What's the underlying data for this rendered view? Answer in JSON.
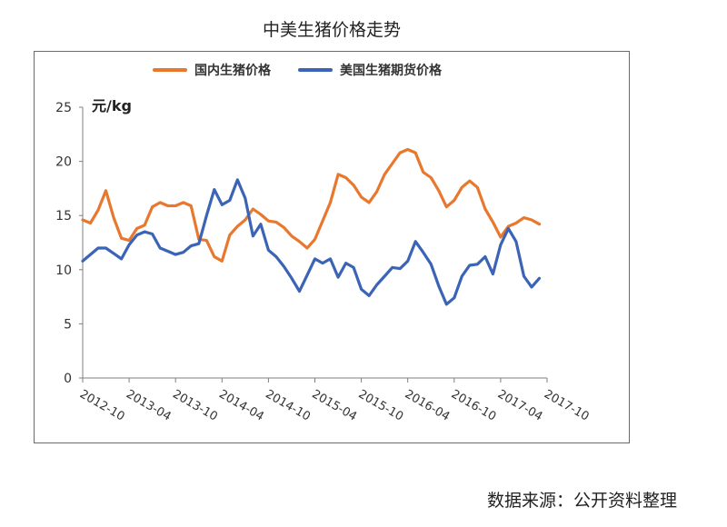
{
  "page_title": "中美生猪价格走势",
  "source_note": "数据来源：公开资料整理",
  "chart_data": {
    "type": "line",
    "title": "",
    "ylabel": "元/kg",
    "xlabel": "",
    "ylim": [
      0,
      25
    ],
    "yticks": [
      0,
      5,
      10,
      15,
      20,
      25
    ],
    "xlim": [
      "2012-10",
      "2017-10"
    ],
    "x_tick_labels": [
      "2012-10",
      "2013-04",
      "2013-10",
      "2014-04",
      "2014-10",
      "2015-04",
      "2015-10",
      "2016-04",
      "2016-10",
      "2017-04",
      "2017-10"
    ],
    "grid": false,
    "legend_position": "top",
    "series": [
      {
        "name": "国内生猪价格",
        "color": "#E8782E",
        "points": [
          [
            "2012-10",
            14.6
          ],
          [
            "2012-11",
            14.3
          ],
          [
            "2012-12",
            15.5
          ],
          [
            "2013-01",
            17.3
          ],
          [
            "2013-02",
            14.8
          ],
          [
            "2013-03",
            12.9
          ],
          [
            "2013-04",
            12.7
          ],
          [
            "2013-05",
            13.8
          ],
          [
            "2013-06",
            14.1
          ],
          [
            "2013-07",
            15.8
          ],
          [
            "2013-08",
            16.2
          ],
          [
            "2013-09",
            15.9
          ],
          [
            "2013-10",
            15.9
          ],
          [
            "2013-11",
            16.2
          ],
          [
            "2013-12",
            15.9
          ],
          [
            "2014-01",
            12.8
          ],
          [
            "2014-02",
            12.7
          ],
          [
            "2014-03",
            11.2
          ],
          [
            "2014-04",
            10.8
          ],
          [
            "2014-05",
            13.2
          ],
          [
            "2014-06",
            14.0
          ],
          [
            "2014-07",
            14.6
          ],
          [
            "2014-08",
            15.6
          ],
          [
            "2014-09",
            15.1
          ],
          [
            "2014-10",
            14.5
          ],
          [
            "2014-11",
            14.4
          ],
          [
            "2014-12",
            13.9
          ],
          [
            "2015-01",
            13.1
          ],
          [
            "2015-02",
            12.6
          ],
          [
            "2015-03",
            12.0
          ],
          [
            "2015-04",
            12.8
          ],
          [
            "2015-05",
            14.5
          ],
          [
            "2015-06",
            16.2
          ],
          [
            "2015-07",
            18.8
          ],
          [
            "2015-08",
            18.5
          ],
          [
            "2015-09",
            17.8
          ],
          [
            "2015-10",
            16.7
          ],
          [
            "2015-11",
            16.2
          ],
          [
            "2015-12",
            17.2
          ],
          [
            "2016-01",
            18.8
          ],
          [
            "2016-02",
            19.8
          ],
          [
            "2016-03",
            20.8
          ],
          [
            "2016-04",
            21.1
          ],
          [
            "2016-05",
            20.8
          ],
          [
            "2016-06",
            19.0
          ],
          [
            "2016-07",
            18.5
          ],
          [
            "2016-08",
            17.3
          ],
          [
            "2016-09",
            15.8
          ],
          [
            "2016-10",
            16.4
          ],
          [
            "2016-11",
            17.6
          ],
          [
            "2016-12",
            18.2
          ],
          [
            "2017-01",
            17.6
          ],
          [
            "2017-02",
            15.6
          ],
          [
            "2017-03",
            14.4
          ],
          [
            "2017-04",
            13.0
          ],
          [
            "2017-05",
            14.0
          ],
          [
            "2017-06",
            14.3
          ],
          [
            "2017-07",
            14.8
          ],
          [
            "2017-08",
            14.6
          ],
          [
            "2017-09",
            14.2
          ]
        ]
      },
      {
        "name": "美国生猪期货价格",
        "color": "#3B64B6",
        "points": [
          [
            "2012-10",
            10.8
          ],
          [
            "2012-11",
            11.4
          ],
          [
            "2012-12",
            12.0
          ],
          [
            "2013-01",
            12.0
          ],
          [
            "2013-02",
            11.5
          ],
          [
            "2013-03",
            11.0
          ],
          [
            "2013-04",
            12.3
          ],
          [
            "2013-05",
            13.2
          ],
          [
            "2013-06",
            13.5
          ],
          [
            "2013-07",
            13.3
          ],
          [
            "2013-08",
            12.0
          ],
          [
            "2013-09",
            11.7
          ],
          [
            "2013-10",
            11.4
          ],
          [
            "2013-11",
            11.6
          ],
          [
            "2013-12",
            12.2
          ],
          [
            "2014-01",
            12.4
          ],
          [
            "2014-02",
            15.0
          ],
          [
            "2014-03",
            17.4
          ],
          [
            "2014-04",
            16.0
          ],
          [
            "2014-05",
            16.4
          ],
          [
            "2014-06",
            18.3
          ],
          [
            "2014-07",
            16.6
          ],
          [
            "2014-08",
            13.1
          ],
          [
            "2014-09",
            14.2
          ],
          [
            "2014-10",
            11.8
          ],
          [
            "2014-11",
            11.2
          ],
          [
            "2014-12",
            10.3
          ],
          [
            "2015-01",
            9.2
          ],
          [
            "2015-02",
            8.0
          ],
          [
            "2015-03",
            9.5
          ],
          [
            "2015-04",
            11.0
          ],
          [
            "2015-05",
            10.6
          ],
          [
            "2015-06",
            11.0
          ],
          [
            "2015-07",
            9.3
          ],
          [
            "2015-08",
            10.6
          ],
          [
            "2015-09",
            10.2
          ],
          [
            "2015-10",
            8.2
          ],
          [
            "2015-11",
            7.6
          ],
          [
            "2015-12",
            8.6
          ],
          [
            "2016-01",
            9.4
          ],
          [
            "2016-02",
            10.2
          ],
          [
            "2016-03",
            10.1
          ],
          [
            "2016-04",
            10.8
          ],
          [
            "2016-05",
            12.6
          ],
          [
            "2016-06",
            11.6
          ],
          [
            "2016-07",
            10.5
          ],
          [
            "2016-08",
            8.5
          ],
          [
            "2016-09",
            6.8
          ],
          [
            "2016-10",
            7.4
          ],
          [
            "2016-11",
            9.4
          ],
          [
            "2016-12",
            10.4
          ],
          [
            "2017-01",
            10.5
          ],
          [
            "2017-02",
            11.2
          ],
          [
            "2017-03",
            9.6
          ],
          [
            "2017-04",
            12.3
          ],
          [
            "2017-05",
            13.8
          ],
          [
            "2017-06",
            12.6
          ],
          [
            "2017-07",
            9.4
          ],
          [
            "2017-08",
            8.4
          ],
          [
            "2017-09",
            9.2
          ]
        ]
      }
    ]
  }
}
